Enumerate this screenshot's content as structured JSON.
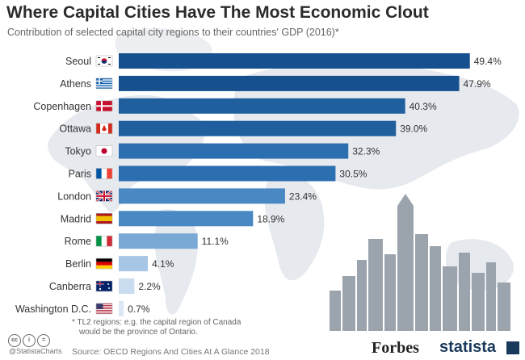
{
  "title": "Where Capital Cities Have The Most Economic Clout",
  "subtitle": "Contribution of selected capital city regions to their countries' GDP (2016)*",
  "chart_data": {
    "type": "bar",
    "orientation": "horizontal",
    "title": "Where Capital Cities Have The Most Economic Clout",
    "subtitle": "Contribution of selected capital city regions to their countries' GDP (2016)*",
    "unit": "%",
    "xlim": [
      0,
      50
    ],
    "grid": false,
    "categories": [
      "Seoul",
      "Athens",
      "Copenhagen",
      "Ottawa",
      "Tokyo",
      "Paris",
      "London",
      "Madrid",
      "Rome",
      "Berlin",
      "Canberra",
      "Washington D.C."
    ],
    "values": [
      49.4,
      47.9,
      40.3,
      39.0,
      32.3,
      30.5,
      23.4,
      18.9,
      11.1,
      4.1,
      2.2,
      0.7
    ],
    "value_labels": [
      "49.4%",
      "47.9%",
      "40.3%",
      "39.0%",
      "32.3%",
      "30.5%",
      "23.4%",
      "18.9%",
      "11.1%",
      "4.1%",
      "2.2%",
      "0.7%"
    ],
    "bar_colors": [
      "#16508f",
      "#16508f",
      "#1f5f9e",
      "#1f5f9e",
      "#2c6fb0",
      "#2c6fb0",
      "#4a88c4",
      "#4a88c4",
      "#7aa9d6",
      "#a7c6e6",
      "#c9dcf0",
      "#dbe7f4"
    ],
    "flag_icons": [
      "south-korea-flag-icon",
      "greece-flag-icon",
      "denmark-flag-icon",
      "canada-flag-icon",
      "japan-flag-icon",
      "france-flag-icon",
      "uk-flag-icon",
      "spain-flag-icon",
      "italy-flag-icon",
      "germany-flag-icon",
      "australia-flag-icon",
      "usa-flag-icon"
    ]
  },
  "footnote": {
    "line1": "* TL2 regions: e.g. the capital region of Canada",
    "line2": "would be the province of Ontario."
  },
  "handle": "@StatistaCharts",
  "source": "Source: OECD Regions And Cities At A Glance 2018",
  "brand_forbes": "Forbes",
  "brand_statista": "statista",
  "colors": {
    "bar_dark": "#16508f",
    "bar_light": "#dbe7f4",
    "background_map": "#e6e9ee",
    "skyline": "#9ba3ad"
  }
}
